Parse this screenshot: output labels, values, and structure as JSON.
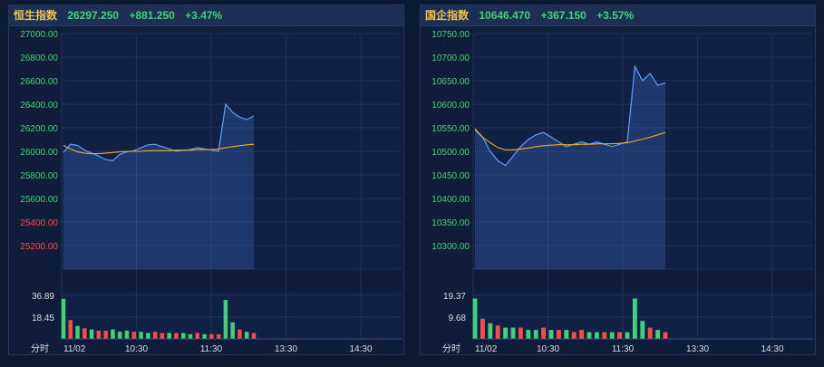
{
  "colors": {
    "up": "#3ed27a",
    "down": "#ff4a4a",
    "price_line": "#5aa0ff",
    "avg_line": "#f0b020",
    "grid": "#1f3358",
    "axis_text": "#d8dde8",
    "vol_up": "#3ed27a",
    "vol_down": "#ff4a4a"
  },
  "chart_data": [
    {
      "type": "line",
      "title": "恒生指数",
      "header": {
        "name": "恒生指数",
        "last": "26297.250",
        "change": "+881.250",
        "pct": "+3.47%"
      },
      "y_ticks": [
        "27000.00",
        "26800.00",
        "26600.00",
        "26400.00",
        "26200.00",
        "26000.00",
        "25800.00",
        "25600.00",
        "25400.00",
        "25200.00"
      ],
      "y_tick_colors": [
        "up",
        "up",
        "up",
        "up",
        "up",
        "up",
        "up",
        "up",
        "down",
        "down"
      ],
      "ylim": [
        25000,
        27000
      ],
      "prev_close": 25416,
      "x_ticks": [
        "11/02",
        "10:30",
        "11:30",
        "13:30",
        "14:30"
      ],
      "x_label": "分时",
      "volume_ticks": [
        "36.89",
        "18.45"
      ],
      "volume_max": 36.89,
      "price": [
        25990,
        26060,
        26050,
        26010,
        25985,
        25960,
        25930,
        25920,
        25975,
        25995,
        26005,
        26030,
        26055,
        26060,
        26040,
        26020,
        26000,
        26010,
        26015,
        26030,
        26020,
        26010,
        26000,
        26400,
        26330,
        26290,
        26270,
        26300
      ],
      "avg": [
        26050,
        26020,
        25995,
        25985,
        25980,
        25980,
        25985,
        25990,
        25995,
        26000,
        26000,
        26000,
        26005,
        26005,
        26005,
        26005,
        26010,
        26010,
        26010,
        26015,
        26015,
        26015,
        26020,
        26030,
        26040,
        26048,
        26055,
        26060
      ],
      "volume": [
        34,
        16,
        11,
        9,
        8,
        7,
        7,
        8,
        6,
        7,
        6,
        6,
        5,
        6,
        5,
        5,
        5,
        5,
        4,
        5,
        4,
        4,
        4,
        33,
        14,
        8,
        6,
        5
      ],
      "volume_up": [
        1,
        0,
        1,
        0,
        1,
        0,
        0,
        1,
        1,
        1,
        0,
        1,
        1,
        0,
        0,
        1,
        0,
        1,
        1,
        0,
        1,
        0,
        0,
        1,
        1,
        0,
        1,
        0
      ]
    },
    {
      "type": "line",
      "title": "国企指数",
      "header": {
        "name": "国企指数",
        "last": "10646.470",
        "change": "+367.150",
        "pct": "+3.57%"
      },
      "y_ticks": [
        "10750.00",
        "10700.00",
        "10650.00",
        "10600.00",
        "10550.00",
        "10500.00",
        "10450.00",
        "10400.00",
        "10350.00",
        "10300.00"
      ],
      "y_tick_colors": [
        "up",
        "up",
        "up",
        "up",
        "up",
        "up",
        "up",
        "up",
        "up",
        "up"
      ],
      "ylim": [
        10250,
        10750
      ],
      "prev_close": 10279,
      "x_ticks": [
        "11/02",
        "10:30",
        "11:30",
        "13:30",
        "14:30"
      ],
      "x_label": "分时",
      "volume_ticks": [
        "19.37",
        "9.68"
      ],
      "volume_max": 19.37,
      "price": [
        10545,
        10530,
        10500,
        10480,
        10470,
        10490,
        10510,
        10525,
        10535,
        10540,
        10530,
        10520,
        10510,
        10515,
        10520,
        10515,
        10520,
        10515,
        10510,
        10515,
        10520,
        10680,
        10650,
        10665,
        10640,
        10645
      ],
      "avg": [
        10548,
        10530,
        10518,
        10508,
        10503,
        10503,
        10505,
        10507,
        10510,
        10512,
        10513,
        10514,
        10514,
        10514,
        10515,
        10515,
        10516,
        10516,
        10516,
        10517,
        10518,
        10522,
        10526,
        10530,
        10535,
        10540
      ],
      "volume": [
        18,
        9,
        7,
        6,
        5,
        5,
        5,
        4,
        4,
        5,
        4,
        4,
        4,
        3,
        4,
        3,
        3,
        3,
        3,
        3,
        3,
        18,
        8,
        5,
        4,
        3
      ],
      "volume_up": [
        1,
        0,
        1,
        0,
        1,
        1,
        0,
        1,
        1,
        0,
        1,
        0,
        1,
        0,
        0,
        1,
        1,
        0,
        1,
        0,
        1,
        1,
        1,
        0,
        1,
        0
      ]
    }
  ]
}
